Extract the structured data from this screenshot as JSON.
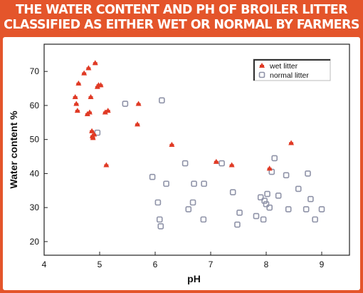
{
  "header": {
    "title_line1": "THE WATER CONTENT AND PH OF BROILER LITTER",
    "title_line2": "CLASSIFIED AS EITHER WET OR NORMAL BY FARMERS"
  },
  "colors": {
    "frame": "#e4552b",
    "wet": "#e03a25",
    "normal": "#8f93a8"
  },
  "chart_data": {
    "type": "scatter",
    "title": "THE WATER CONTENT AND PH OF BROILER LITTER CLASSIFIED AS EITHER WET OR NORMAL BY FARMERS",
    "xlabel": "pH",
    "ylabel": "Water content %",
    "xlim": [
      4,
      9.5
    ],
    "ylim": [
      16,
      78
    ],
    "xticks": [
      4,
      5,
      6,
      7,
      8,
      9
    ],
    "yticks": [
      20,
      30,
      40,
      50,
      60,
      70
    ],
    "grid": false,
    "legend_position": "top-right",
    "series": [
      {
        "name": "wet litter",
        "marker": "red-filled",
        "points": [
          [
            4.56,
            62.5
          ],
          [
            4.58,
            60.5
          ],
          [
            4.6,
            58.5
          ],
          [
            4.62,
            66.5
          ],
          [
            4.72,
            69.5
          ],
          [
            4.78,
            57.5
          ],
          [
            4.8,
            71
          ],
          [
            4.82,
            58
          ],
          [
            4.84,
            62.5
          ],
          [
            4.86,
            52.5
          ],
          [
            4.87,
            51
          ],
          [
            4.88,
            50.5
          ],
          [
            4.9,
            51.5
          ],
          [
            4.92,
            72.5
          ],
          [
            4.96,
            65.5
          ],
          [
            4.98,
            66
          ],
          [
            5.02,
            66
          ],
          [
            5.1,
            58
          ],
          [
            5.12,
            42.5
          ],
          [
            5.15,
            58.5
          ],
          [
            5.68,
            54.5
          ],
          [
            5.7,
            60.5
          ],
          [
            6.3,
            48.5
          ],
          [
            7.1,
            43.5
          ],
          [
            7.38,
            42.5
          ],
          [
            8.06,
            41.5
          ],
          [
            8.45,
            49
          ]
        ]
      },
      {
        "name": "normal litter",
        "marker": "grey-open-square",
        "points": [
          [
            4.96,
            52
          ],
          [
            5.46,
            60.5
          ],
          [
            6.12,
            61.5
          ],
          [
            5.95,
            39
          ],
          [
            6.05,
            31.5
          ],
          [
            6.08,
            26.5
          ],
          [
            6.1,
            24.5
          ],
          [
            6.2,
            37
          ],
          [
            6.54,
            43
          ],
          [
            6.6,
            29.5
          ],
          [
            6.68,
            31.5
          ],
          [
            6.7,
            37
          ],
          [
            6.87,
            26.5
          ],
          [
            6.88,
            37
          ],
          [
            7.2,
            43
          ],
          [
            7.4,
            34.5
          ],
          [
            7.48,
            25
          ],
          [
            7.52,
            28.5
          ],
          [
            7.82,
            27.5
          ],
          [
            7.9,
            33
          ],
          [
            7.95,
            26.5
          ],
          [
            7.97,
            32
          ],
          [
            8.0,
            31
          ],
          [
            8.02,
            34
          ],
          [
            8.06,
            30
          ],
          [
            8.1,
            40.5
          ],
          [
            8.15,
            44.5
          ],
          [
            8.22,
            33.5
          ],
          [
            8.36,
            39.5
          ],
          [
            8.4,
            29.5
          ],
          [
            8.58,
            35.5
          ],
          [
            8.72,
            29.5
          ],
          [
            8.75,
            40
          ],
          [
            8.8,
            32.5
          ],
          [
            8.88,
            26.5
          ],
          [
            9.0,
            29.5
          ]
        ]
      }
    ]
  }
}
